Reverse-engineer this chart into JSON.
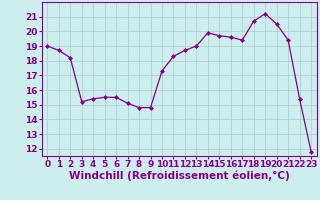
{
  "x": [
    0,
    1,
    2,
    3,
    4,
    5,
    6,
    7,
    8,
    9,
    10,
    11,
    12,
    13,
    14,
    15,
    16,
    17,
    18,
    19,
    20,
    21,
    22,
    23
  ],
  "y": [
    19.0,
    18.7,
    18.2,
    15.2,
    15.4,
    15.5,
    15.5,
    15.1,
    14.8,
    14.8,
    17.3,
    18.3,
    18.7,
    19.0,
    19.9,
    19.7,
    19.6,
    19.4,
    20.7,
    21.2,
    20.5,
    19.4,
    15.4,
    11.8
  ],
  "line_color": "#880088",
  "marker": "D",
  "marker_size": 2.0,
  "bg_color": "#cceeee",
  "grid_color": "#aacccc",
  "xlabel": "Windchill (Refroidissement éolien,°C)",
  "xlabel_fontsize": 7.5,
  "tick_fontsize": 6.5,
  "xlim": [
    -0.5,
    23.5
  ],
  "ylim": [
    11.5,
    22.0
  ],
  "yticks": [
    12,
    13,
    14,
    15,
    16,
    17,
    18,
    19,
    20,
    21
  ],
  "xticks": [
    0,
    1,
    2,
    3,
    4,
    5,
    6,
    7,
    8,
    9,
    10,
    11,
    12,
    13,
    14,
    15,
    16,
    17,
    18,
    19,
    20,
    21,
    22,
    23
  ],
  "tick_color": "#880088",
  "label_color": "#880088"
}
